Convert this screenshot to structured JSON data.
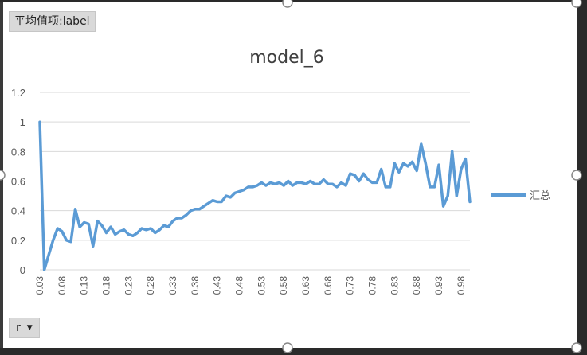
{
  "pivot": {
    "value_field_label": "平均值项:label",
    "row_field_label": "r",
    "dropdown_icon": "triangle-down-icon"
  },
  "chart_data": {
    "type": "line",
    "title": "model_6",
    "xlabel": "",
    "ylabel": "",
    "ylim": [
      0,
      1.2
    ],
    "yticks": [
      0,
      0.2,
      0.4,
      0.6,
      0.8,
      1,
      1.2
    ],
    "grid": true,
    "legend_position": "right",
    "color": "#5b9bd5",
    "x": [
      0.03,
      0.04,
      0.05,
      0.06,
      0.07,
      0.08,
      0.09,
      0.1,
      0.11,
      0.12,
      0.13,
      0.14,
      0.15,
      0.16,
      0.17,
      0.18,
      0.19,
      0.2,
      0.21,
      0.22,
      0.23,
      0.24,
      0.25,
      0.26,
      0.27,
      0.28,
      0.29,
      0.3,
      0.31,
      0.32,
      0.33,
      0.34,
      0.35,
      0.36,
      0.37,
      0.38,
      0.39,
      0.4,
      0.41,
      0.42,
      0.43,
      0.44,
      0.45,
      0.46,
      0.47,
      0.48,
      0.49,
      0.5,
      0.51,
      0.52,
      0.53,
      0.54,
      0.55,
      0.56,
      0.57,
      0.58,
      0.59,
      0.6,
      0.61,
      0.62,
      0.63,
      0.64,
      0.65,
      0.66,
      0.67,
      0.68,
      0.69,
      0.7,
      0.71,
      0.72,
      0.73,
      0.74,
      0.75,
      0.76,
      0.77,
      0.78,
      0.79,
      0.8,
      0.81,
      0.82,
      0.83,
      0.84,
      0.85,
      0.86,
      0.87,
      0.88,
      0.89,
      0.9,
      0.91,
      0.92,
      0.93,
      0.94,
      0.95,
      0.96,
      0.97,
      0.98,
      0.99,
      1.0
    ],
    "xtick_labels": [
      "0.03",
      "0.08",
      "0.13",
      "0.18",
      "0.23",
      "0.28",
      "0.33",
      "0.38",
      "0.43",
      "0.48",
      "0.53",
      "0.58",
      "0.63",
      "0.68",
      "0.73",
      "0.78",
      "0.83",
      "0.88",
      "0.93",
      "0.98"
    ],
    "series": [
      {
        "name": "汇总",
        "values": [
          1.0,
          0.0,
          0.1,
          0.2,
          0.28,
          0.26,
          0.2,
          0.19,
          0.41,
          0.29,
          0.32,
          0.31,
          0.16,
          0.33,
          0.3,
          0.25,
          0.29,
          0.24,
          0.26,
          0.27,
          0.24,
          0.23,
          0.25,
          0.28,
          0.27,
          0.28,
          0.25,
          0.27,
          0.3,
          0.29,
          0.33,
          0.35,
          0.35,
          0.37,
          0.4,
          0.41,
          0.41,
          0.43,
          0.45,
          0.47,
          0.46,
          0.46,
          0.5,
          0.49,
          0.52,
          0.53,
          0.54,
          0.56,
          0.56,
          0.57,
          0.59,
          0.57,
          0.59,
          0.58,
          0.59,
          0.57,
          0.6,
          0.57,
          0.59,
          0.59,
          0.58,
          0.6,
          0.58,
          0.58,
          0.61,
          0.58,
          0.58,
          0.56,
          0.59,
          0.57,
          0.65,
          0.64,
          0.6,
          0.65,
          0.61,
          0.59,
          0.59,
          0.68,
          0.56,
          0.56,
          0.72,
          0.66,
          0.72,
          0.7,
          0.73,
          0.67,
          0.85,
          0.72,
          0.56,
          0.56,
          0.71,
          0.43,
          0.5,
          0.8,
          0.5,
          0.68,
          0.75,
          0.46
        ]
      }
    ]
  }
}
